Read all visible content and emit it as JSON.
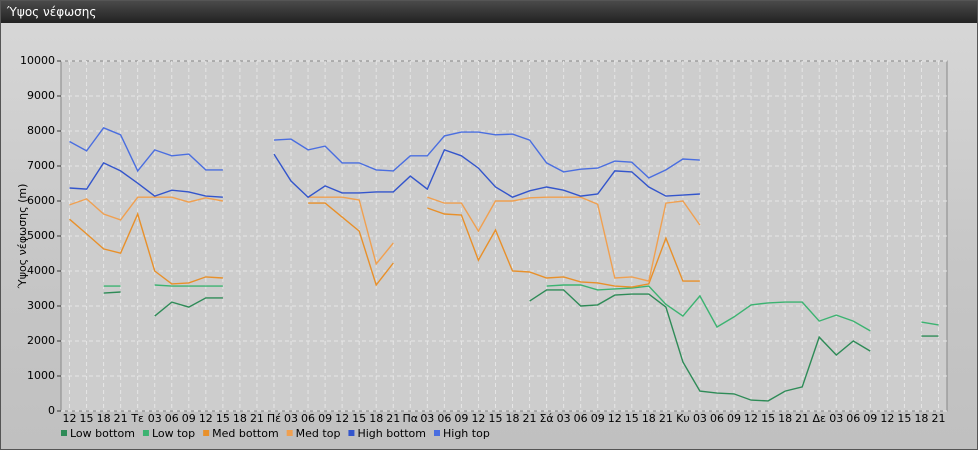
{
  "chart_data": {
    "type": "line",
    "title": "Ύψος νέφωσης",
    "y_label": "Ύψος νέφωσης (m)",
    "categories": [
      "12",
      "15",
      "18",
      "21",
      "Τε",
      "03",
      "06",
      "09",
      "12",
      "15",
      "18",
      "21",
      "Πέ",
      "03",
      "06",
      "09",
      "12",
      "15",
      "18",
      "21",
      "Πα",
      "03",
      "06",
      "09",
      "12",
      "15",
      "18",
      "21",
      "Σά",
      "03",
      "06",
      "09",
      "12",
      "15",
      "18",
      "21",
      "Κυ",
      "03",
      "06",
      "09",
      "12",
      "15",
      "18",
      "21",
      "Δε",
      "03",
      "06",
      "09",
      "12",
      "15",
      "18",
      "21"
    ],
    "ylim": [
      0,
      10000
    ],
    "yticks": [
      0,
      1000,
      2000,
      3000,
      4000,
      5000,
      6000,
      7000,
      8000,
      9000,
      10000
    ],
    "grid": true,
    "legend": "bottom",
    "series": [
      {
        "name": "Low bottom",
        "color": "#2e8b57",
        "values": [
          null,
          null,
          3370,
          3400,
          null,
          2710,
          3110,
          2970,
          3230,
          3230,
          null,
          null,
          null,
          null,
          null,
          null,
          null,
          null,
          null,
          null,
          null,
          null,
          null,
          null,
          null,
          null,
          null,
          3140,
          3460,
          3460,
          3000,
          3030,
          3310,
          3340,
          3340,
          2970,
          1400,
          570,
          510,
          490,
          310,
          290,
          570,
          690,
          2110,
          1600,
          2000,
          1710,
          null,
          null,
          2140,
          2140
        ]
      },
      {
        "name": "Low top",
        "color": "#3cb371",
        "values": [
          null,
          null,
          3570,
          3570,
          null,
          3600,
          3570,
          3570,
          3570,
          3570,
          null,
          null,
          null,
          null,
          null,
          null,
          null,
          null,
          null,
          null,
          null,
          null,
          null,
          null,
          null,
          null,
          null,
          null,
          3570,
          3600,
          3600,
          3460,
          3490,
          3510,
          3570,
          3050,
          2710,
          3290,
          2400,
          2690,
          3030,
          3090,
          3110,
          3110,
          2570,
          2740,
          2570,
          2290,
          null,
          null,
          2540,
          2460
        ]
      },
      {
        "name": "Med bottom",
        "color": "#e8902a",
        "values": [
          5480,
          5060,
          4630,
          4510,
          5630,
          4000,
          3630,
          3660,
          3830,
          3800,
          null,
          null,
          null,
          null,
          5940,
          5940,
          5540,
          5140,
          3600,
          4230,
          null,
          5800,
          5630,
          5600,
          4310,
          5170,
          4000,
          3970,
          3800,
          3830,
          3690,
          3660,
          3570,
          3540,
          3630,
          4940,
          3710,
          3710,
          null,
          null,
          null,
          null,
          null,
          null,
          null,
          null,
          null,
          null,
          null,
          null,
          null,
          null
        ]
      },
      {
        "name": "Med top",
        "color": "#f0a050",
        "values": [
          5890,
          6060,
          5630,
          5460,
          6110,
          6110,
          6110,
          5970,
          6090,
          6000,
          null,
          null,
          null,
          null,
          6110,
          6110,
          6110,
          6030,
          4200,
          4800,
          null,
          6110,
          5940,
          5940,
          5140,
          6000,
          6000,
          6090,
          6110,
          6110,
          6110,
          5910,
          3800,
          3830,
          3710,
          5940,
          6000,
          5310,
          null,
          null,
          null,
          null,
          null,
          null,
          null,
          null,
          null,
          null,
          null,
          null,
          null,
          null
        ]
      },
      {
        "name": "High bottom",
        "color": "#3355cc",
        "values": [
          6370,
          6340,
          7090,
          6860,
          6510,
          6140,
          6310,
          6260,
          6140,
          6110,
          null,
          null,
          7340,
          6570,
          6110,
          6430,
          6230,
          6230,
          6260,
          6260,
          6710,
          6340,
          7460,
          7290,
          6940,
          6400,
          6110,
          6290,
          6400,
          6310,
          6140,
          6200,
          6860,
          6830,
          6400,
          6140,
          6170,
          6200,
          null,
          null,
          null,
          null,
          null,
          null,
          null,
          null,
          null,
          null,
          null,
          null,
          null,
          null
        ]
      },
      {
        "name": "High top",
        "color": "#4a6ee0",
        "values": [
          7700,
          7430,
          8090,
          7890,
          6860,
          7460,
          7290,
          7340,
          6890,
          6890,
          null,
          null,
          7740,
          7770,
          7460,
          7570,
          7090,
          7090,
          6890,
          6860,
          7290,
          7290,
          7860,
          7970,
          7970,
          7890,
          7910,
          7740,
          7090,
          6830,
          6910,
          6940,
          7140,
          7110,
          6660,
          6890,
          7200,
          7170,
          null,
          null,
          null,
          null,
          null,
          null,
          null,
          null,
          null,
          null,
          null,
          null,
          null,
          null
        ]
      }
    ]
  }
}
